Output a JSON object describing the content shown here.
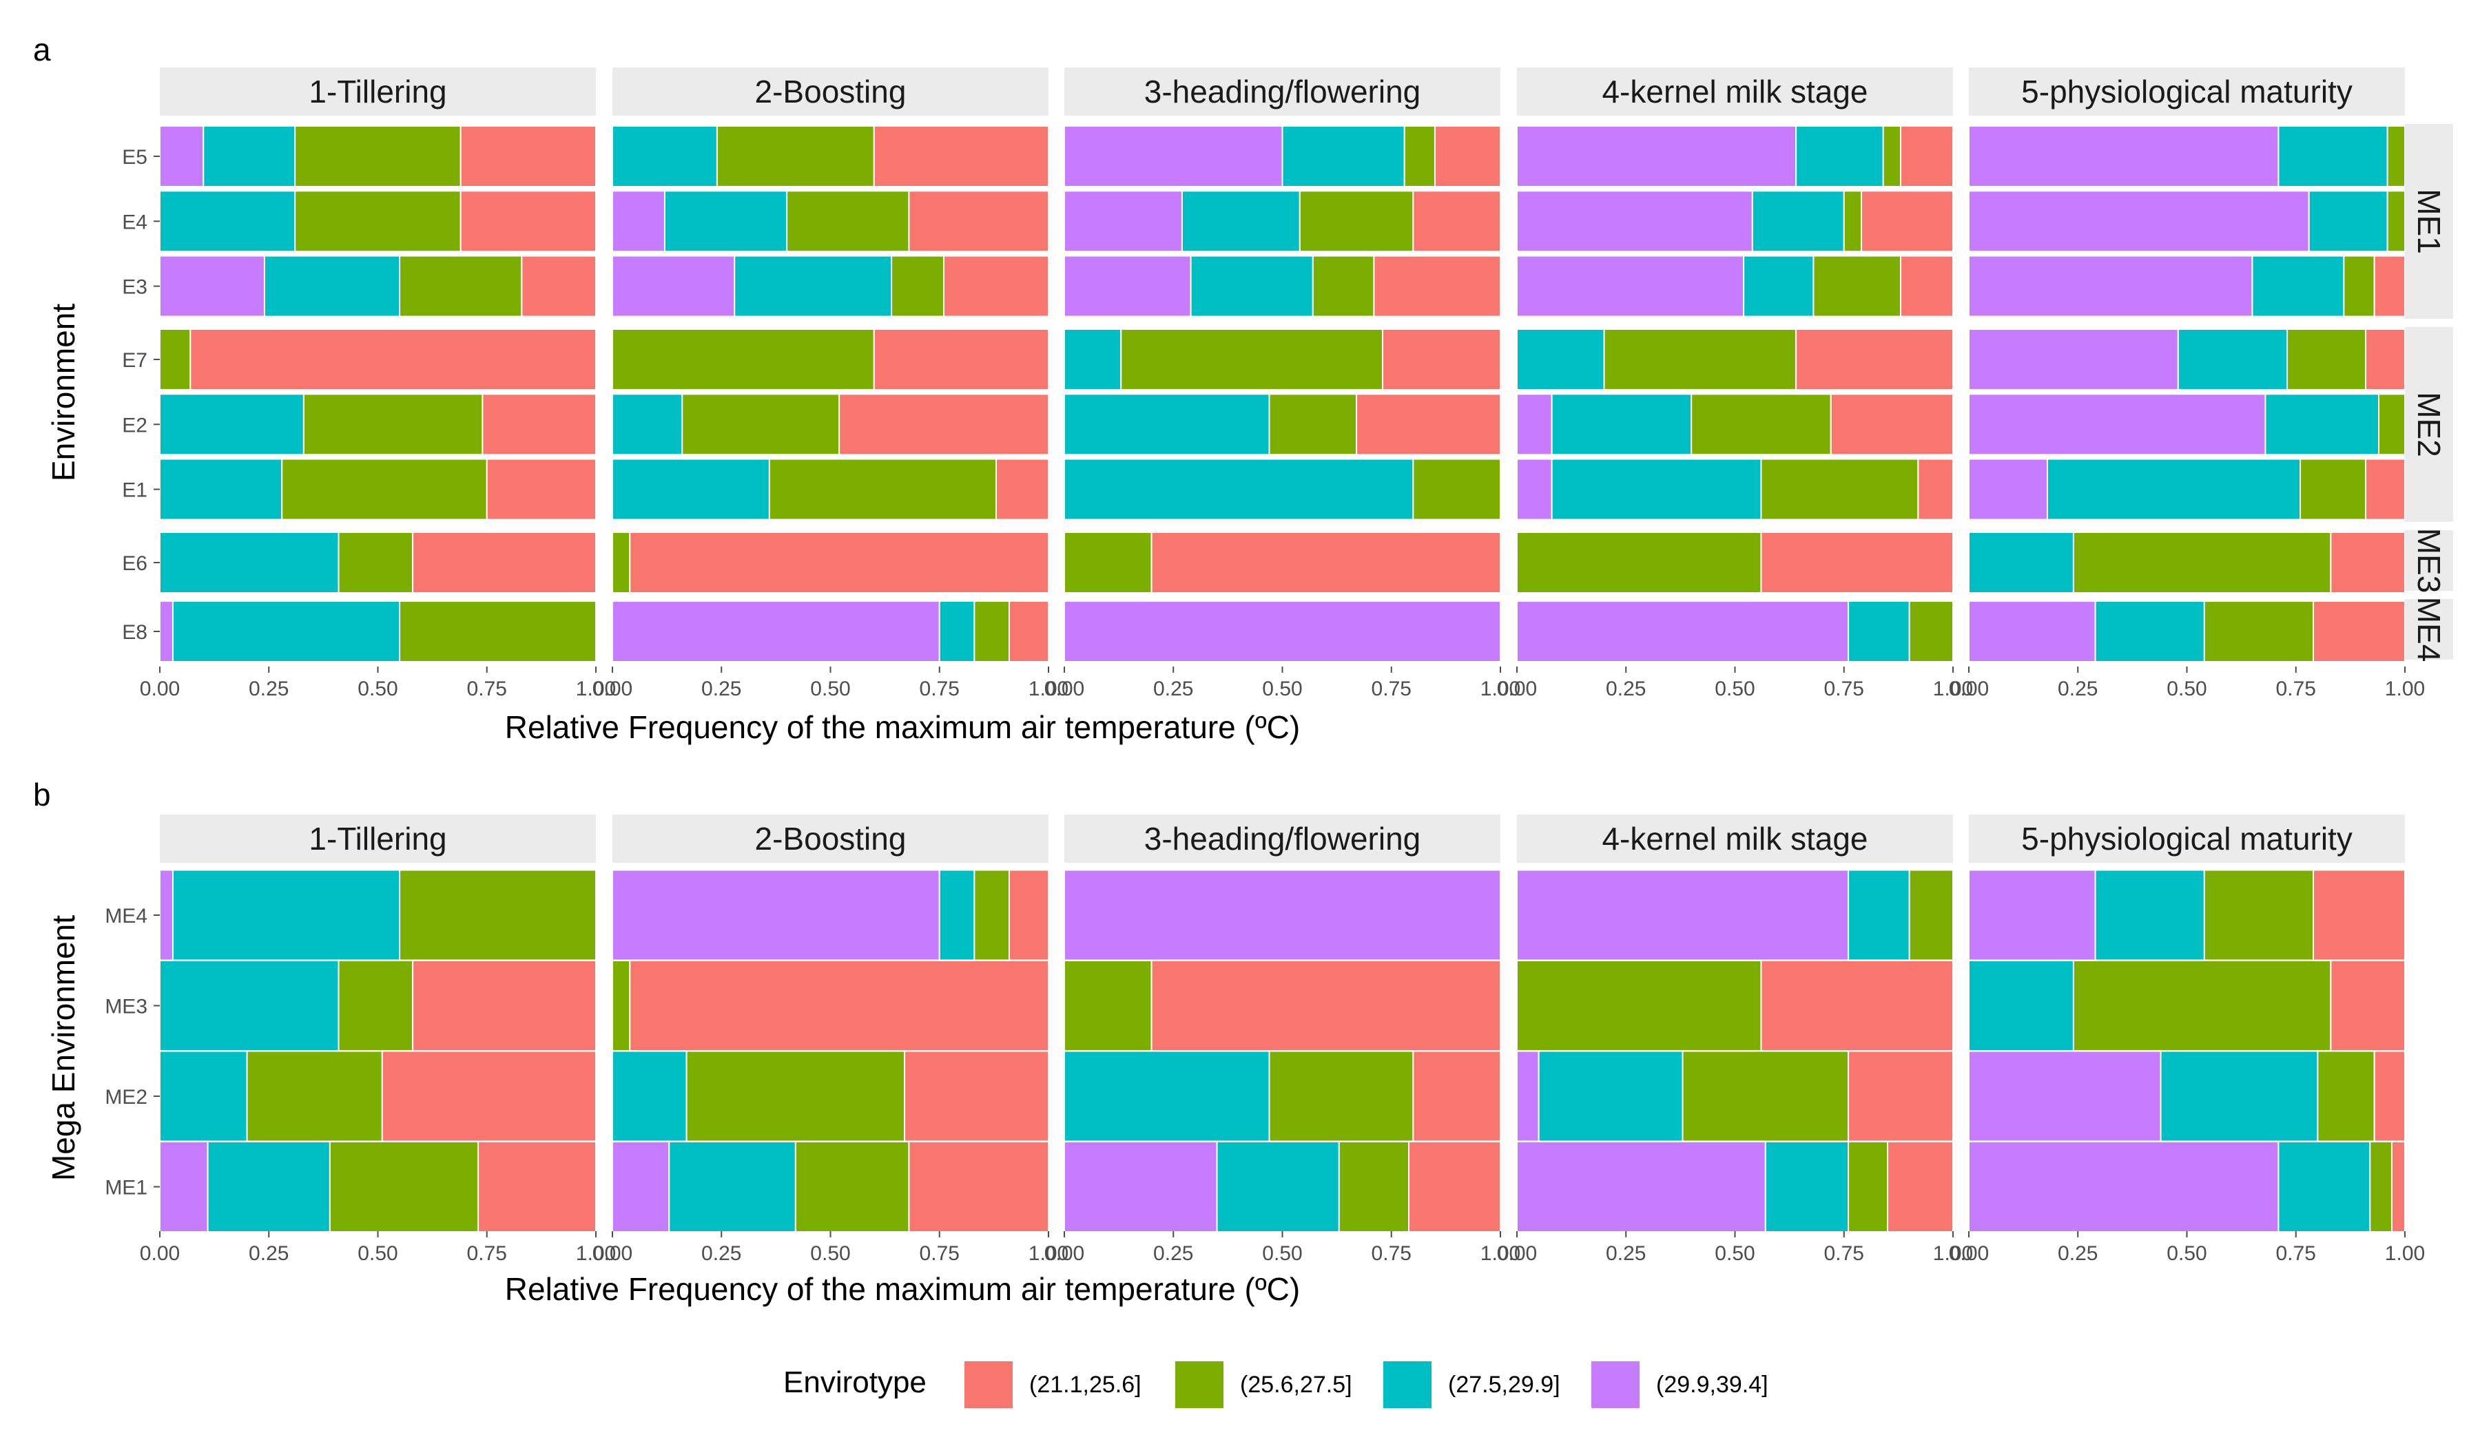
{
  "colors": {
    "(21.1,25.6]": "#F8766D",
    "(25.6,27.5]": "#7CAE00",
    "(27.5,29.9]": "#00BFC4",
    "(29.9,39.4]": "#C77CFF",
    "strip_bg": "#ebebeb",
    "tick_color": "#4d4d4d"
  },
  "legend": {
    "title": "Envirotype",
    "items": [
      "(21.1,25.6]",
      "(25.6,27.5]",
      "(27.5,29.9]",
      "(29.9,39.4]"
    ]
  },
  "chart_data": [
    {
      "tag": "a",
      "type": "bar",
      "orientation": "horizontal",
      "stacked": true,
      "xlabel": "Relative Frequency of the maximum air temperature (ºC)",
      "ylabel": "Environment",
      "xlim": [
        0,
        1
      ],
      "xticks": [
        "0.00",
        "0.25",
        "0.50",
        "0.75",
        "1.00"
      ],
      "stages": [
        "1-Tillering",
        "2-Boosting",
        "3-heading/flowering",
        "4-kernel milk stage",
        "5-physiological maturity"
      ],
      "row_groups": [
        {
          "label": "ME1",
          "categories": [
            "E5",
            "E4",
            "E3"
          ]
        },
        {
          "label": "ME2",
          "categories": [
            "E7",
            "E2",
            "E1"
          ]
        },
        {
          "label": "ME3",
          "categories": [
            "E6"
          ]
        },
        {
          "label": "ME4",
          "categories": [
            "E8"
          ]
        }
      ],
      "series_order": [
        "(29.9,39.4]",
        "(27.5,29.9]",
        "(25.6,27.5]",
        "(21.1,25.6]"
      ],
      "values": {
        "1-Tillering": {
          "E5": [
            0.1,
            0.21,
            0.38,
            0.31
          ],
          "E4": [
            0.0,
            0.31,
            0.38,
            0.31
          ],
          "E3": [
            0.24,
            0.31,
            0.28,
            0.17
          ],
          "E7": [
            0.0,
            0.0,
            0.07,
            0.93
          ],
          "E2": [
            0.0,
            0.33,
            0.41,
            0.26
          ],
          "E1": [
            0.0,
            0.28,
            0.47,
            0.25
          ],
          "E6": [
            0.0,
            0.41,
            0.17,
            0.42
          ],
          "E8": [
            0.03,
            0.52,
            0.45,
            0.0
          ]
        },
        "2-Boosting": {
          "E5": [
            0.0,
            0.24,
            0.36,
            0.4
          ],
          "E4": [
            0.12,
            0.28,
            0.28,
            0.32
          ],
          "E3": [
            0.28,
            0.36,
            0.12,
            0.24
          ],
          "E7": [
            0.0,
            0.0,
            0.6,
            0.4
          ],
          "E2": [
            0.0,
            0.16,
            0.36,
            0.48
          ],
          "E1": [
            0.0,
            0.36,
            0.52,
            0.12
          ],
          "E6": [
            0.0,
            0.0,
            0.04,
            0.96
          ],
          "E8": [
            0.75,
            0.08,
            0.08,
            0.09
          ]
        },
        "3-heading/flowering": {
          "E5": [
            0.5,
            0.28,
            0.07,
            0.15
          ],
          "E4": [
            0.27,
            0.27,
            0.26,
            0.2
          ],
          "E3": [
            0.29,
            0.28,
            0.14,
            0.29
          ],
          "E7": [
            0.0,
            0.13,
            0.6,
            0.27
          ],
          "E2": [
            0.0,
            0.47,
            0.2,
            0.33
          ],
          "E1": [
            0.0,
            0.8,
            0.2,
            0.0
          ],
          "E6": [
            0.0,
            0.0,
            0.2,
            0.8
          ],
          "E8": [
            1.0,
            0.0,
            0.0,
            0.0
          ]
        },
        "4-kernel milk stage": {
          "E5": [
            0.64,
            0.2,
            0.04,
            0.12
          ],
          "E4": [
            0.54,
            0.21,
            0.04,
            0.21
          ],
          "E3": [
            0.52,
            0.16,
            0.2,
            0.12
          ],
          "E7": [
            0.0,
            0.2,
            0.44,
            0.36
          ],
          "E2": [
            0.08,
            0.32,
            0.32,
            0.28
          ],
          "E1": [
            0.08,
            0.48,
            0.36,
            0.08
          ],
          "E6": [
            0.0,
            0.0,
            0.56,
            0.44
          ],
          "E8": [
            0.76,
            0.14,
            0.1,
            0.0
          ]
        },
        "5-physiological maturity": {
          "E5": [
            0.71,
            0.25,
            0.04,
            0.0
          ],
          "E4": [
            0.78,
            0.18,
            0.04,
            0.0
          ],
          "E3": [
            0.65,
            0.21,
            0.07,
            0.07
          ],
          "E7": [
            0.48,
            0.25,
            0.18,
            0.09
          ],
          "E2": [
            0.68,
            0.26,
            0.06,
            0.0
          ],
          "E1": [
            0.18,
            0.58,
            0.15,
            0.09
          ],
          "E6": [
            0.0,
            0.24,
            0.59,
            0.17
          ],
          "E8": [
            0.29,
            0.25,
            0.25,
            0.21
          ]
        }
      }
    },
    {
      "tag": "b",
      "type": "bar",
      "orientation": "horizontal",
      "stacked": true,
      "xlabel": "Relative Frequency of the maximum air temperature (ºC)",
      "ylabel": "Mega Environment",
      "xlim": [
        0,
        1
      ],
      "xticks": [
        "0.00",
        "0.25",
        "0.50",
        "0.75",
        "1.00"
      ],
      "stages": [
        "1-Tillering",
        "2-Boosting",
        "3-heading/flowering",
        "4-kernel milk stage",
        "5-physiological maturity"
      ],
      "categories": [
        "ME4",
        "ME3",
        "ME2",
        "ME1"
      ],
      "series_order": [
        "(29.9,39.4]",
        "(27.5,29.9]",
        "(25.6,27.5]",
        "(21.1,25.6]"
      ],
      "values": {
        "1-Tillering": {
          "ME4": [
            0.03,
            0.52,
            0.45,
            0.0
          ],
          "ME3": [
            0.0,
            0.41,
            0.17,
            0.42
          ],
          "ME2": [
            0.0,
            0.2,
            0.31,
            0.49
          ],
          "ME1": [
            0.11,
            0.28,
            0.34,
            0.27
          ]
        },
        "2-Boosting": {
          "ME4": [
            0.75,
            0.08,
            0.08,
            0.09
          ],
          "ME3": [
            0.0,
            0.0,
            0.04,
            0.96
          ],
          "ME2": [
            0.0,
            0.17,
            0.5,
            0.33
          ],
          "ME1": [
            0.13,
            0.29,
            0.26,
            0.32
          ]
        },
        "3-heading/flowering": {
          "ME4": [
            1.0,
            0.0,
            0.0,
            0.0
          ],
          "ME3": [
            0.0,
            0.0,
            0.2,
            0.8
          ],
          "ME2": [
            0.0,
            0.47,
            0.33,
            0.2
          ],
          "ME1": [
            0.35,
            0.28,
            0.16,
            0.21
          ]
        },
        "4-kernel milk stage": {
          "ME4": [
            0.76,
            0.14,
            0.1,
            0.0
          ],
          "ME3": [
            0.0,
            0.0,
            0.56,
            0.44
          ],
          "ME2": [
            0.05,
            0.33,
            0.38,
            0.24
          ],
          "ME1": [
            0.57,
            0.19,
            0.09,
            0.15
          ]
        },
        "5-physiological maturity": {
          "ME4": [
            0.29,
            0.25,
            0.25,
            0.21
          ],
          "ME3": [
            0.0,
            0.24,
            0.59,
            0.17
          ],
          "ME2": [
            0.44,
            0.36,
            0.13,
            0.07
          ],
          "ME1": [
            0.71,
            0.21,
            0.05,
            0.03
          ]
        }
      }
    }
  ]
}
